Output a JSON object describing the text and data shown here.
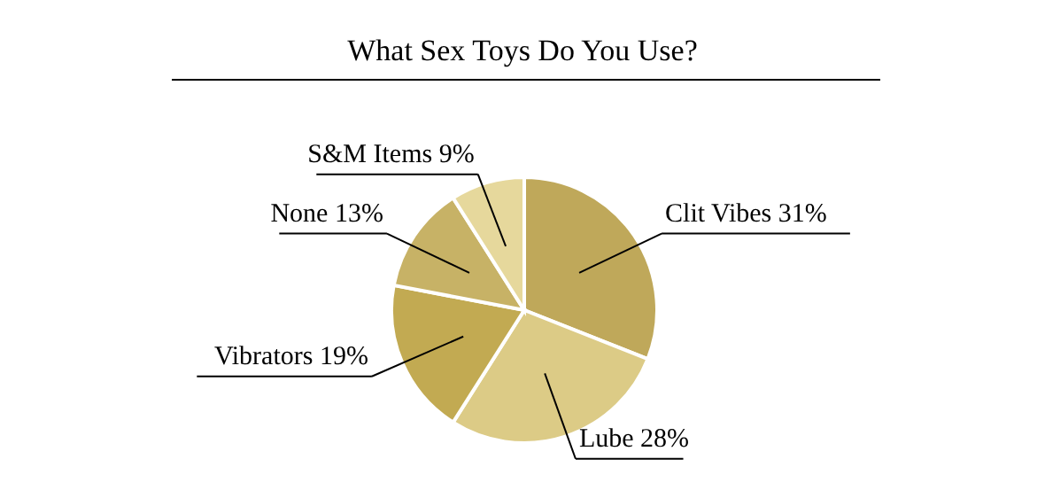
{
  "chart_data": {
    "type": "pie",
    "title": "What Sex Toys Do You Use?",
    "categories": [
      "Clit Vibes",
      "Lube",
      "Vibrators",
      "None",
      "S&M Items"
    ],
    "values": [
      31,
      28,
      19,
      13,
      9
    ],
    "value_labels": [
      "31%",
      "28%",
      "19%",
      "13%",
      "9%"
    ],
    "colors": [
      "#bfa85a",
      "#dccb86",
      "#c2aa52",
      "#c7b266",
      "#e6d89c"
    ]
  }
}
